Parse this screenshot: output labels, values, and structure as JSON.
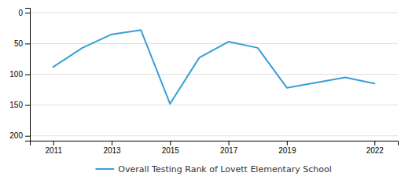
{
  "chart_data": {
    "type": "line",
    "x": [
      2011,
      2012,
      2013,
      2014,
      2015,
      2016,
      2017,
      2018,
      2019,
      2021,
      2022
    ],
    "series": [
      {
        "name": "Overall Testing Rank of Lovett Elementary School",
        "color": "#3a9fd5",
        "values": [
          88,
          57,
          35,
          28,
          148,
          73,
          47,
          57,
          122,
          105,
          115
        ]
      }
    ],
    "xlim": [
      2010.2,
      2022.8
    ],
    "ylim": [
      208,
      -8
    ],
    "xticks": [
      2011,
      2013,
      2015,
      2017,
      2019,
      2022
    ],
    "yticks": [
      0,
      50,
      100,
      150,
      200
    ],
    "grid": true,
    "legend": "bottom"
  }
}
